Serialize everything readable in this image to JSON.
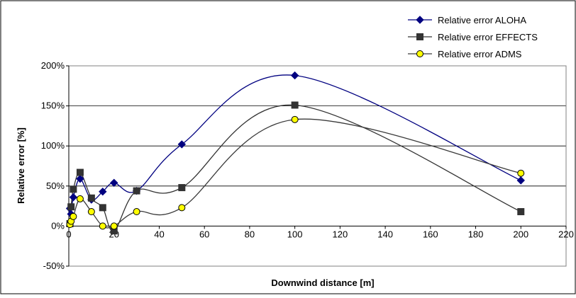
{
  "chart_data": {
    "type": "line",
    "smoothed": true,
    "xlabel": "Downwind distance [m]",
    "ylabel": "Relative error [%]",
    "xlim": [
      0,
      220
    ],
    "ylim": [
      -50,
      200
    ],
    "x_ticks": [
      0,
      20,
      40,
      60,
      80,
      100,
      120,
      140,
      160,
      180,
      200,
      220
    ],
    "y_ticks": [
      -50,
      0,
      50,
      100,
      150,
      200
    ],
    "y_tick_labels": [
      "-50%",
      "0%",
      "50%",
      "100%",
      "150%",
      "200%"
    ],
    "grid": "horizontal major gridlines",
    "legend_position": "top-right",
    "series": [
      {
        "name": "Relative error ALOHA",
        "color": "#000080",
        "marker": "diamond",
        "x": [
          0.5,
          1,
          2,
          5,
          10,
          15,
          20,
          30,
          50,
          100,
          200
        ],
        "y": [
          22,
          15,
          36,
          59,
          33,
          43,
          54,
          44,
          102,
          188,
          57
        ]
      },
      {
        "name": "Relative error EFFECTS",
        "color": "#333333",
        "marker": "square",
        "x": [
          0.5,
          1,
          2,
          5,
          10,
          15,
          20,
          30,
          50,
          100,
          200
        ],
        "y": [
          3,
          24,
          46,
          67,
          35,
          23,
          -6,
          44,
          48,
          151,
          18
        ]
      },
      {
        "name": "Relative error ADMS",
        "color": "#ffff00",
        "line_color": "#3a3a3a",
        "marker": "circle",
        "x": [
          0.5,
          1,
          2,
          5,
          10,
          15,
          20,
          30,
          50,
          100,
          200
        ],
        "y": [
          2,
          6,
          12,
          34,
          18,
          0,
          0,
          18,
          23,
          133,
          66
        ]
      }
    ]
  }
}
